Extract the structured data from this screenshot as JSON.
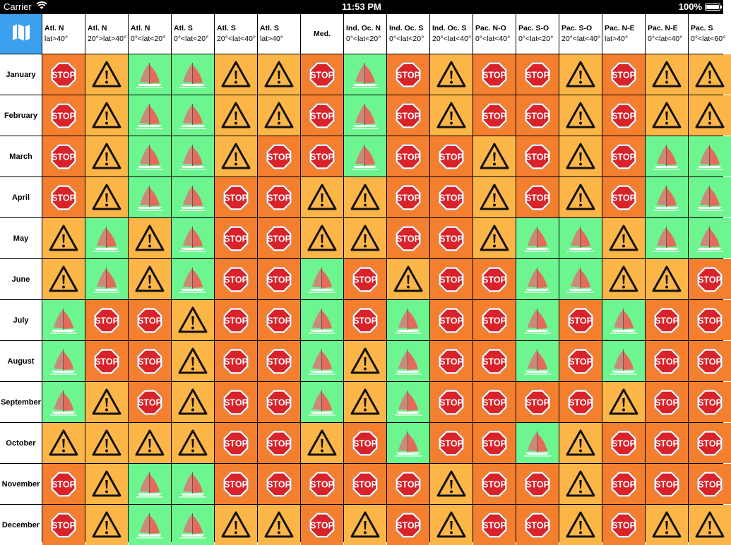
{
  "status_bar": {
    "carrier": "Carrier",
    "time": "11:53 PM",
    "battery": "100%",
    "battery_level": 1.0
  },
  "corner_icon": "map-icon",
  "colors": {
    "corner": "#3ba0f0",
    "stop": "#f47f2e",
    "warn": "#fcb648",
    "boat": "#6df58f"
  },
  "columns": [
    {
      "line1": "Atl. N",
      "line2": "lat>40°"
    },
    {
      "line1": "Atl. N",
      "line2": "20°>lat>40°"
    },
    {
      "line1": "Atl. N",
      "line2": "0°<lat<20°"
    },
    {
      "line1": "Atl. S",
      "line2": "0°<lat<20°"
    },
    {
      "line1": "Atl. S",
      "line2": "20°<lat<40°"
    },
    {
      "line1": "Atl. S",
      "line2": "lat>40°"
    },
    {
      "line1": "Med.",
      "line2": ""
    },
    {
      "line1": "Ind. Oc. N",
      "line2": "0°<lat<20°"
    },
    {
      "line1": "Ind. Oc. S",
      "line2": "0°<lat<20°"
    },
    {
      "line1": "Ind. Oc. S",
      "line2": "20°<lat<40°"
    },
    {
      "line1": "Pac. N-O",
      "line2": "0°<lat<40°"
    },
    {
      "line1": "Pac. S-O",
      "line2": "0°<lat<20°"
    },
    {
      "line1": "Pac. S-O",
      "line2": "20°<lat<40°"
    },
    {
      "line1": "Pac. N-E",
      "line2": "lat>40°"
    },
    {
      "line1": "Pac. N-E",
      "line2": "0°<lat<40°"
    },
    {
      "line1": "Pac. S",
      "line2": "0°<lat<60°"
    }
  ],
  "rows": [
    {
      "month": "January",
      "cells": [
        "stop",
        "warn",
        "boat",
        "boat",
        "warn",
        "warn",
        "stop",
        "boat",
        "stop",
        "warn",
        "stop",
        "stop",
        "warn",
        "stop",
        "warn",
        "warn"
      ]
    },
    {
      "month": "February",
      "cells": [
        "stop",
        "warn",
        "boat",
        "boat",
        "warn",
        "warn",
        "stop",
        "boat",
        "stop",
        "warn",
        "stop",
        "stop",
        "warn",
        "stop",
        "warn",
        "warn"
      ]
    },
    {
      "month": "March",
      "cells": [
        "stop",
        "warn",
        "boat",
        "boat",
        "warn",
        "stop",
        "stop",
        "boat",
        "stop",
        "stop",
        "warn",
        "stop",
        "warn",
        "stop",
        "boat",
        "boat"
      ]
    },
    {
      "month": "April",
      "cells": [
        "stop",
        "warn",
        "boat",
        "boat",
        "stop",
        "stop",
        "warn",
        "warn",
        "stop",
        "stop",
        "warn",
        "stop",
        "warn",
        "stop",
        "boat",
        "boat"
      ]
    },
    {
      "month": "May",
      "cells": [
        "warn",
        "boat",
        "warn",
        "boat",
        "stop",
        "stop",
        "warn",
        "warn",
        "stop",
        "stop",
        "warn",
        "boat",
        "boat",
        "warn",
        "boat",
        "boat"
      ]
    },
    {
      "month": "June",
      "cells": [
        "warn",
        "boat",
        "warn",
        "boat",
        "stop",
        "stop",
        "boat",
        "stop",
        "warn",
        "stop",
        "stop",
        "boat",
        "boat",
        "warn",
        "warn",
        "stop"
      ]
    },
    {
      "month": "July",
      "cells": [
        "boat",
        "stop",
        "stop",
        "warn",
        "stop",
        "stop",
        "boat",
        "stop",
        "boat",
        "stop",
        "stop",
        "boat",
        "stop",
        "boat",
        "stop",
        "stop"
      ]
    },
    {
      "month": "August",
      "cells": [
        "boat",
        "stop",
        "stop",
        "warn",
        "stop",
        "stop",
        "boat",
        "warn",
        "boat",
        "stop",
        "stop",
        "boat",
        "stop",
        "boat",
        "stop",
        "stop"
      ]
    },
    {
      "month": "September",
      "cells": [
        "boat",
        "warn",
        "stop",
        "warn",
        "stop",
        "stop",
        "boat",
        "warn",
        "boat",
        "stop",
        "stop",
        "stop",
        "stop",
        "warn",
        "stop",
        "stop"
      ]
    },
    {
      "month": "October",
      "cells": [
        "warn",
        "warn",
        "warn",
        "warn",
        "stop",
        "stop",
        "warn",
        "stop",
        "boat",
        "stop",
        "stop",
        "boat",
        "warn",
        "stop",
        "stop",
        "stop"
      ]
    },
    {
      "month": "November",
      "cells": [
        "stop",
        "warn",
        "boat",
        "boat",
        "stop",
        "stop",
        "stop",
        "stop",
        "stop",
        "warn",
        "stop",
        "stop",
        "warn",
        "stop",
        "stop",
        "stop"
      ]
    },
    {
      "month": "December",
      "cells": [
        "stop",
        "warn",
        "boat",
        "boat",
        "warn",
        "warn",
        "stop",
        "warn",
        "stop",
        "warn",
        "stop",
        "stop",
        "warn",
        "stop",
        "warn",
        "warn"
      ]
    }
  ],
  "cell_icons": {
    "stop": {
      "icon": "stop-sign-icon",
      "text": "STOP"
    },
    "warn": {
      "icon": "warning-icon",
      "text": ""
    },
    "boat": {
      "icon": "sailboat-icon",
      "text": ""
    }
  }
}
